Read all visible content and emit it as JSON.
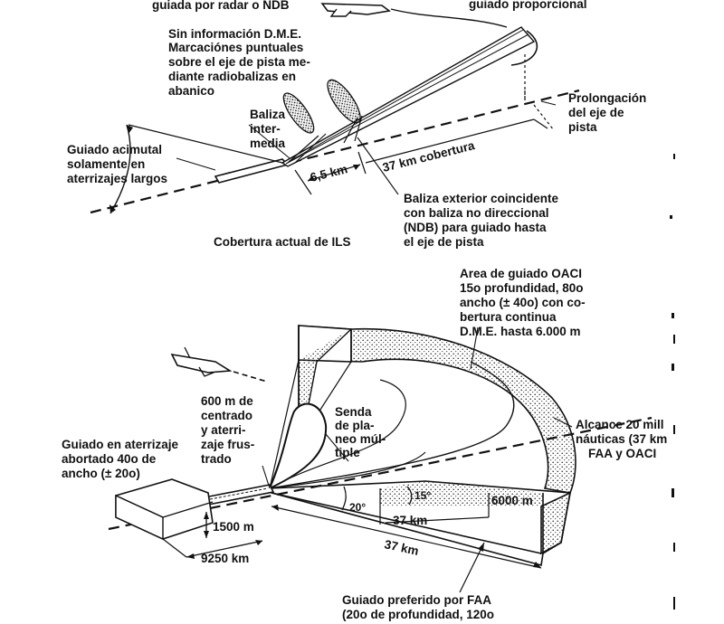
{
  "ils_section": {
    "label_top_left": "guiada por radar o NDB",
    "label_top_right": "guiado proporcional",
    "no_dme": [
      "Sin información D.M.E.",
      "Marcaciónes puntuales",
      "sobre el eje de pista me-",
      "diante radiobalizas en",
      "abanico"
    ],
    "middle_marker": [
      "Baliza",
      "inter-",
      "media"
    ],
    "azimuth_guidance": [
      "Guiado acimutal",
      "solamente en",
      "aterrizajes largos"
    ],
    "extension": [
      "Prolongación",
      "del eje de",
      "pista"
    ],
    "distance_near": "6,5 km",
    "coverage_distance": "37 km cobertura",
    "outer_marker": [
      "Baliza exterior coincidente",
      "con baliza no direccional",
      "(NDB) para guiado hasta",
      "el eje de pista"
    ],
    "caption": "Cobertura actual de ILS"
  },
  "mls_section": {
    "oaci_area": [
      "Area de guiado OACI",
      "15o profundidad, 80o",
      "ancho (± 40o) con co-",
      "bertura continua",
      "D.M.E. hasta 6.000 m"
    ],
    "centering": [
      "600 m de",
      "centrado",
      "y aterri-",
      "zaje frus-",
      "trado"
    ],
    "multiple_glide": [
      "Senda",
      "de pla-",
      "neo múl-",
      "tiple"
    ],
    "range": [
      "Alcance 20 mill",
      "náuticas (37 km",
      "FAA y OACI"
    ],
    "aborted_landing": [
      "Guiado en aterrizaje",
      "abortado 40o de",
      "ancho (± 20o)"
    ],
    "height_1500": "1500 m",
    "distance_9250": "9250 km",
    "angle_20": "20°",
    "angle_15": "15°",
    "height_6000": "6000 m",
    "dist_37_inner": "37 km",
    "dist_37_outer": "37 km",
    "faa_preferred": [
      "Guiado preferido por FAA",
      "(20o de profundidad, 120o"
    ]
  },
  "colors": {
    "ink": "#111111",
    "paper": "#ffffff",
    "stipple": "#9a9a9a"
  }
}
